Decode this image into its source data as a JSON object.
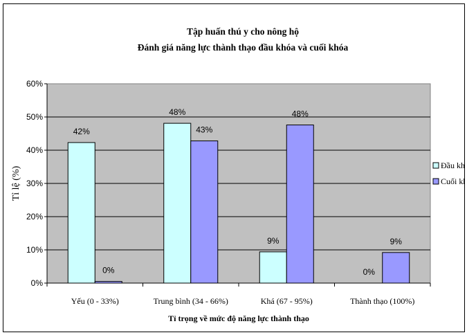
{
  "chart_data": {
    "type": "bar",
    "title": "Tập huấn thú y cho nông hộ",
    "subtitle": "Đánh giá năng lực thành thạo đầu khóa và cuối khóa",
    "xlabel": "Tỉ trọng về mức độ năng lực thành thạo",
    "ylabel": "Tỉ lệ (%)",
    "ylim": [
      0,
      60
    ],
    "y_ticks": [
      "0%",
      "10%",
      "20%",
      "30%",
      "40%",
      "50%",
      "60%"
    ],
    "grid": true,
    "legend_position": "right",
    "categories": [
      "Yếu (0 - 33%)",
      "Trung bình (34 - 66%)",
      "Khá (67 - 95%)",
      "Thành thạo (100%)"
    ],
    "series": [
      {
        "name": "Đầu khó",
        "color": "#ccffff",
        "values": [
          42.3,
          48.1,
          9.4,
          0
        ],
        "labels": [
          "42%",
          "48%",
          "9%",
          "0%"
        ]
      },
      {
        "name": "Cuối khó",
        "color": "#9999ff",
        "values": [
          0.5,
          42.8,
          47.6,
          9.2
        ],
        "labels": [
          "0%",
          "43%",
          "48%",
          "9%"
        ]
      }
    ],
    "plot_background": "#c0c0c0"
  }
}
